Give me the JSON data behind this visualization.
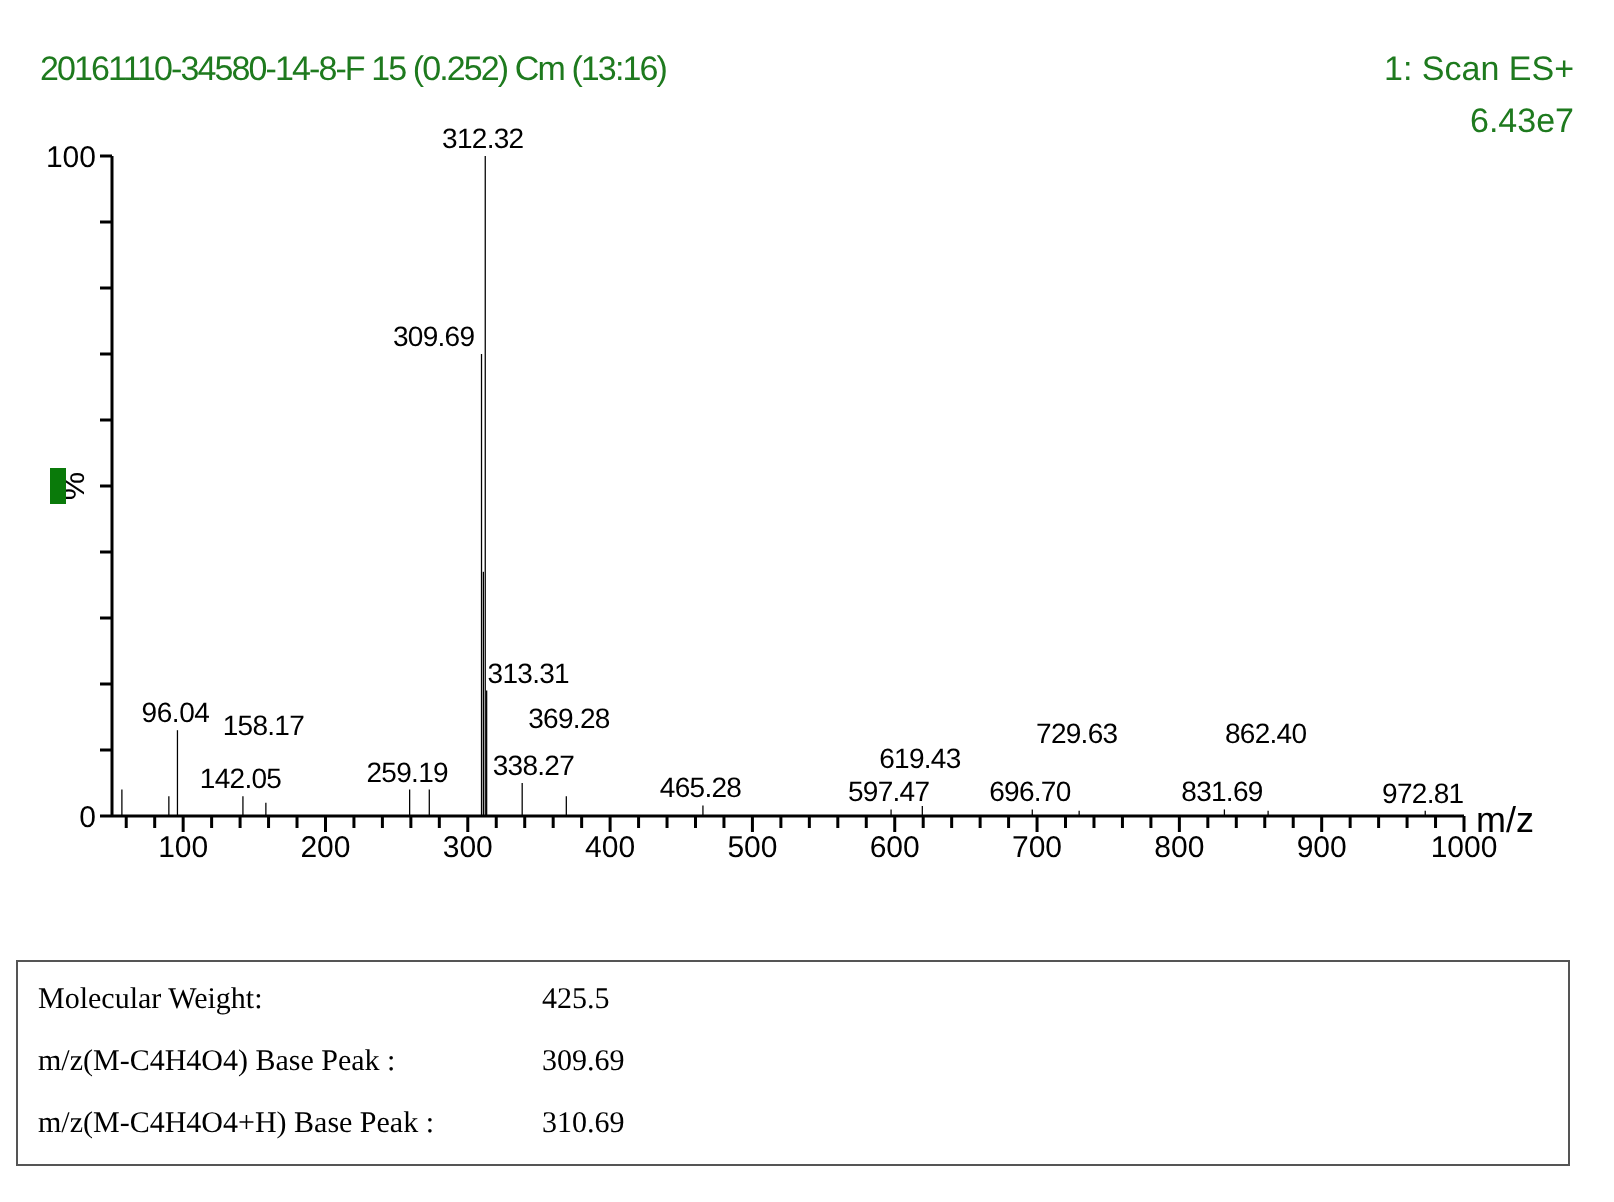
{
  "chart_data": {
    "type": "bar",
    "title": "20161110-34580-14-8-F 15 (0.252) Cm (13:16)",
    "xlabel": "m/z",
    "ylabel": "%",
    "annotations": [
      "1: Scan ES+",
      "6.43e7",
      "Molecular Weight:",
      "425.5",
      "m/z(M-C4H4O4) Base Peak :",
      "309.69",
      "m/z(M-C4H4O4+H) Base Peak :",
      "310.69",
      {
        "text": "96.04",
        "x": 96.04,
        "y": 13
      },
      {
        "text": "142.05",
        "x": 142.05,
        "y": 3
      },
      {
        "text": "158.17",
        "x": 158.17,
        "y": 2
      },
      {
        "text": "259.19",
        "x": 259.19,
        "y": 4
      },
      {
        "text": "309.69",
        "x": 309.69,
        "y": 70
      },
      {
        "text": "312.32",
        "x": 312.32,
        "y": 100
      },
      {
        "text": "313.31",
        "x": 313.31,
        "y": 19
      },
      {
        "text": "338.27",
        "x": 338.27,
        "y": 5
      },
      {
        "text": "369.28",
        "x": 369.28,
        "y": 3
      },
      {
        "text": "465.28",
        "x": 465.28,
        "y": 1.6
      },
      {
        "text": "597.47",
        "x": 597.47,
        "y": 1
      },
      {
        "text": "619.43",
        "x": 619.43,
        "y": 1.5
      },
      {
        "text": "696.70",
        "x": 696.7,
        "y": 1
      },
      {
        "text": "729.63",
        "x": 729.63,
        "y": 0.8
      },
      {
        "text": "831.69",
        "x": 831.69,
        "y": 1
      },
      {
        "text": "862.40",
        "x": 862.4,
        "y": 0.8
      },
      {
        "text": "972.81",
        "x": 972.81,
        "y": 0.8
      }
    ],
    "x": [
      57,
      90,
      96.04,
      142.05,
      158.17,
      259.19,
      273,
      309.69,
      311,
      312.32,
      313.31,
      338.27,
      369.28,
      465.28,
      597.47,
      619.43,
      696.7,
      729.63,
      831.69,
      862.4,
      972.81
    ],
    "values": [
      4,
      3,
      13,
      3,
      2,
      4,
      4,
      70,
      37,
      100,
      19,
      5,
      3,
      1.6,
      1,
      1.5,
      1,
      0.8,
      1,
      0.8,
      0.8
    ],
    "color": "#000000",
    "xlim": [
      50,
      1000
    ],
    "xticks": [
      {
        "value": 60,
        "label": null
      },
      {
        "value": 80,
        "label": null
      },
      100,
      {
        "value": 120,
        "label": null
      },
      {
        "value": 140,
        "label": null
      },
      {
        "value": 160,
        "label": null
      },
      {
        "value": 180,
        "label": null
      },
      200,
      {
        "value": 220,
        "label": null
      },
      {
        "value": 240,
        "label": null
      },
      {
        "value": 260,
        "label": null
      },
      {
        "value": 280,
        "label": null
      },
      300,
      {
        "value": 320,
        "label": null
      },
      {
        "value": 340,
        "label": null
      },
      {
        "value": 360,
        "label": null
      },
      {
        "value": 380,
        "label": null
      },
      400,
      {
        "value": 420,
        "label": null
      },
      {
        "value": 440,
        "label": null
      },
      {
        "value": 460,
        "label": null
      },
      {
        "value": 480,
        "label": null
      },
      500,
      {
        "value": 520,
        "label": null
      },
      {
        "value": 540,
        "label": null
      },
      {
        "value": 560,
        "label": null
      },
      {
        "value": 580,
        "label": null
      },
      600,
      {
        "value": 620,
        "label": null
      },
      {
        "value": 640,
        "label": null
      },
      {
        "value": 660,
        "label": null
      },
      {
        "value": 680,
        "label": null
      },
      700,
      {
        "value": 720,
        "label": null
      },
      {
        "value": 740,
        "label": null
      },
      {
        "value": 760,
        "label": null
      },
      {
        "value": 780,
        "label": null
      },
      800,
      {
        "value": 820,
        "label": null
      },
      {
        "value": 840,
        "label": null
      },
      {
        "value": 860,
        "label": null
      },
      {
        "value": 880,
        "label": null
      },
      900,
      {
        "value": 920,
        "label": null
      },
      {
        "value": 940,
        "label": null
      },
      {
        "value": 960,
        "label": null
      },
      {
        "value": 980,
        "label": null
      },
      1000
    ],
    "ylim": [
      0,
      100
    ],
    "yticks": [
      0,
      {
        "value": 10,
        "label": null
      },
      {
        "value": 20,
        "label": null
      },
      {
        "value": 30,
        "label": null
      },
      {
        "value": 40,
        "label": null
      },
      {
        "value": 50,
        "label": null
      },
      {
        "value": 60,
        "label": null
      },
      {
        "value": 70,
        "label": null
      },
      {
        "value": 80,
        "label": null
      },
      {
        "value": 90,
        "label": null
      },
      100
    ],
    "grid": false,
    "legend": false
  }
}
